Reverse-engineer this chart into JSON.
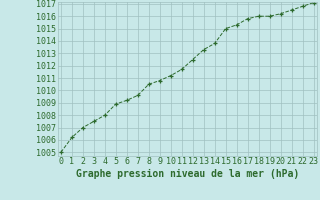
{
  "x": [
    0,
    1,
    2,
    3,
    4,
    5,
    6,
    7,
    8,
    9,
    10,
    11,
    12,
    13,
    14,
    15,
    16,
    17,
    18,
    19,
    20,
    21,
    22,
    23
  ],
  "y": [
    1005.0,
    1006.2,
    1007.0,
    1007.5,
    1008.0,
    1008.9,
    1009.2,
    1009.6,
    1010.5,
    1010.8,
    1011.2,
    1011.7,
    1012.5,
    1013.3,
    1013.8,
    1015.0,
    1015.3,
    1015.8,
    1016.0,
    1016.0,
    1016.2,
    1016.5,
    1016.8,
    1017.1
  ],
  "line_color": "#2d6a2d",
  "marker": "+",
  "bg_color": "#c8e8e8",
  "grid_color": "#a0c0c0",
  "text_color": "#2d6a2d",
  "xlabel": "Graphe pression niveau de la mer (hPa)",
  "ylim_min": 1005,
  "ylim_max": 1017,
  "xlim_min": 0,
  "xlim_max": 23,
  "xtick_labels": [
    "0",
    "1",
    "2",
    "3",
    "4",
    "5",
    "6",
    "7",
    "8",
    "9",
    "10",
    "11",
    "12",
    "13",
    "14",
    "15",
    "16",
    "17",
    "18",
    "19",
    "20",
    "21",
    "22",
    "23"
  ],
  "ytick_labels": [
    "1005",
    "1006",
    "1007",
    "1008",
    "1009",
    "1010",
    "1011",
    "1012",
    "1013",
    "1014",
    "1015",
    "1016",
    "1017"
  ],
  "label_fontsize": 6,
  "xlabel_fontsize": 7
}
